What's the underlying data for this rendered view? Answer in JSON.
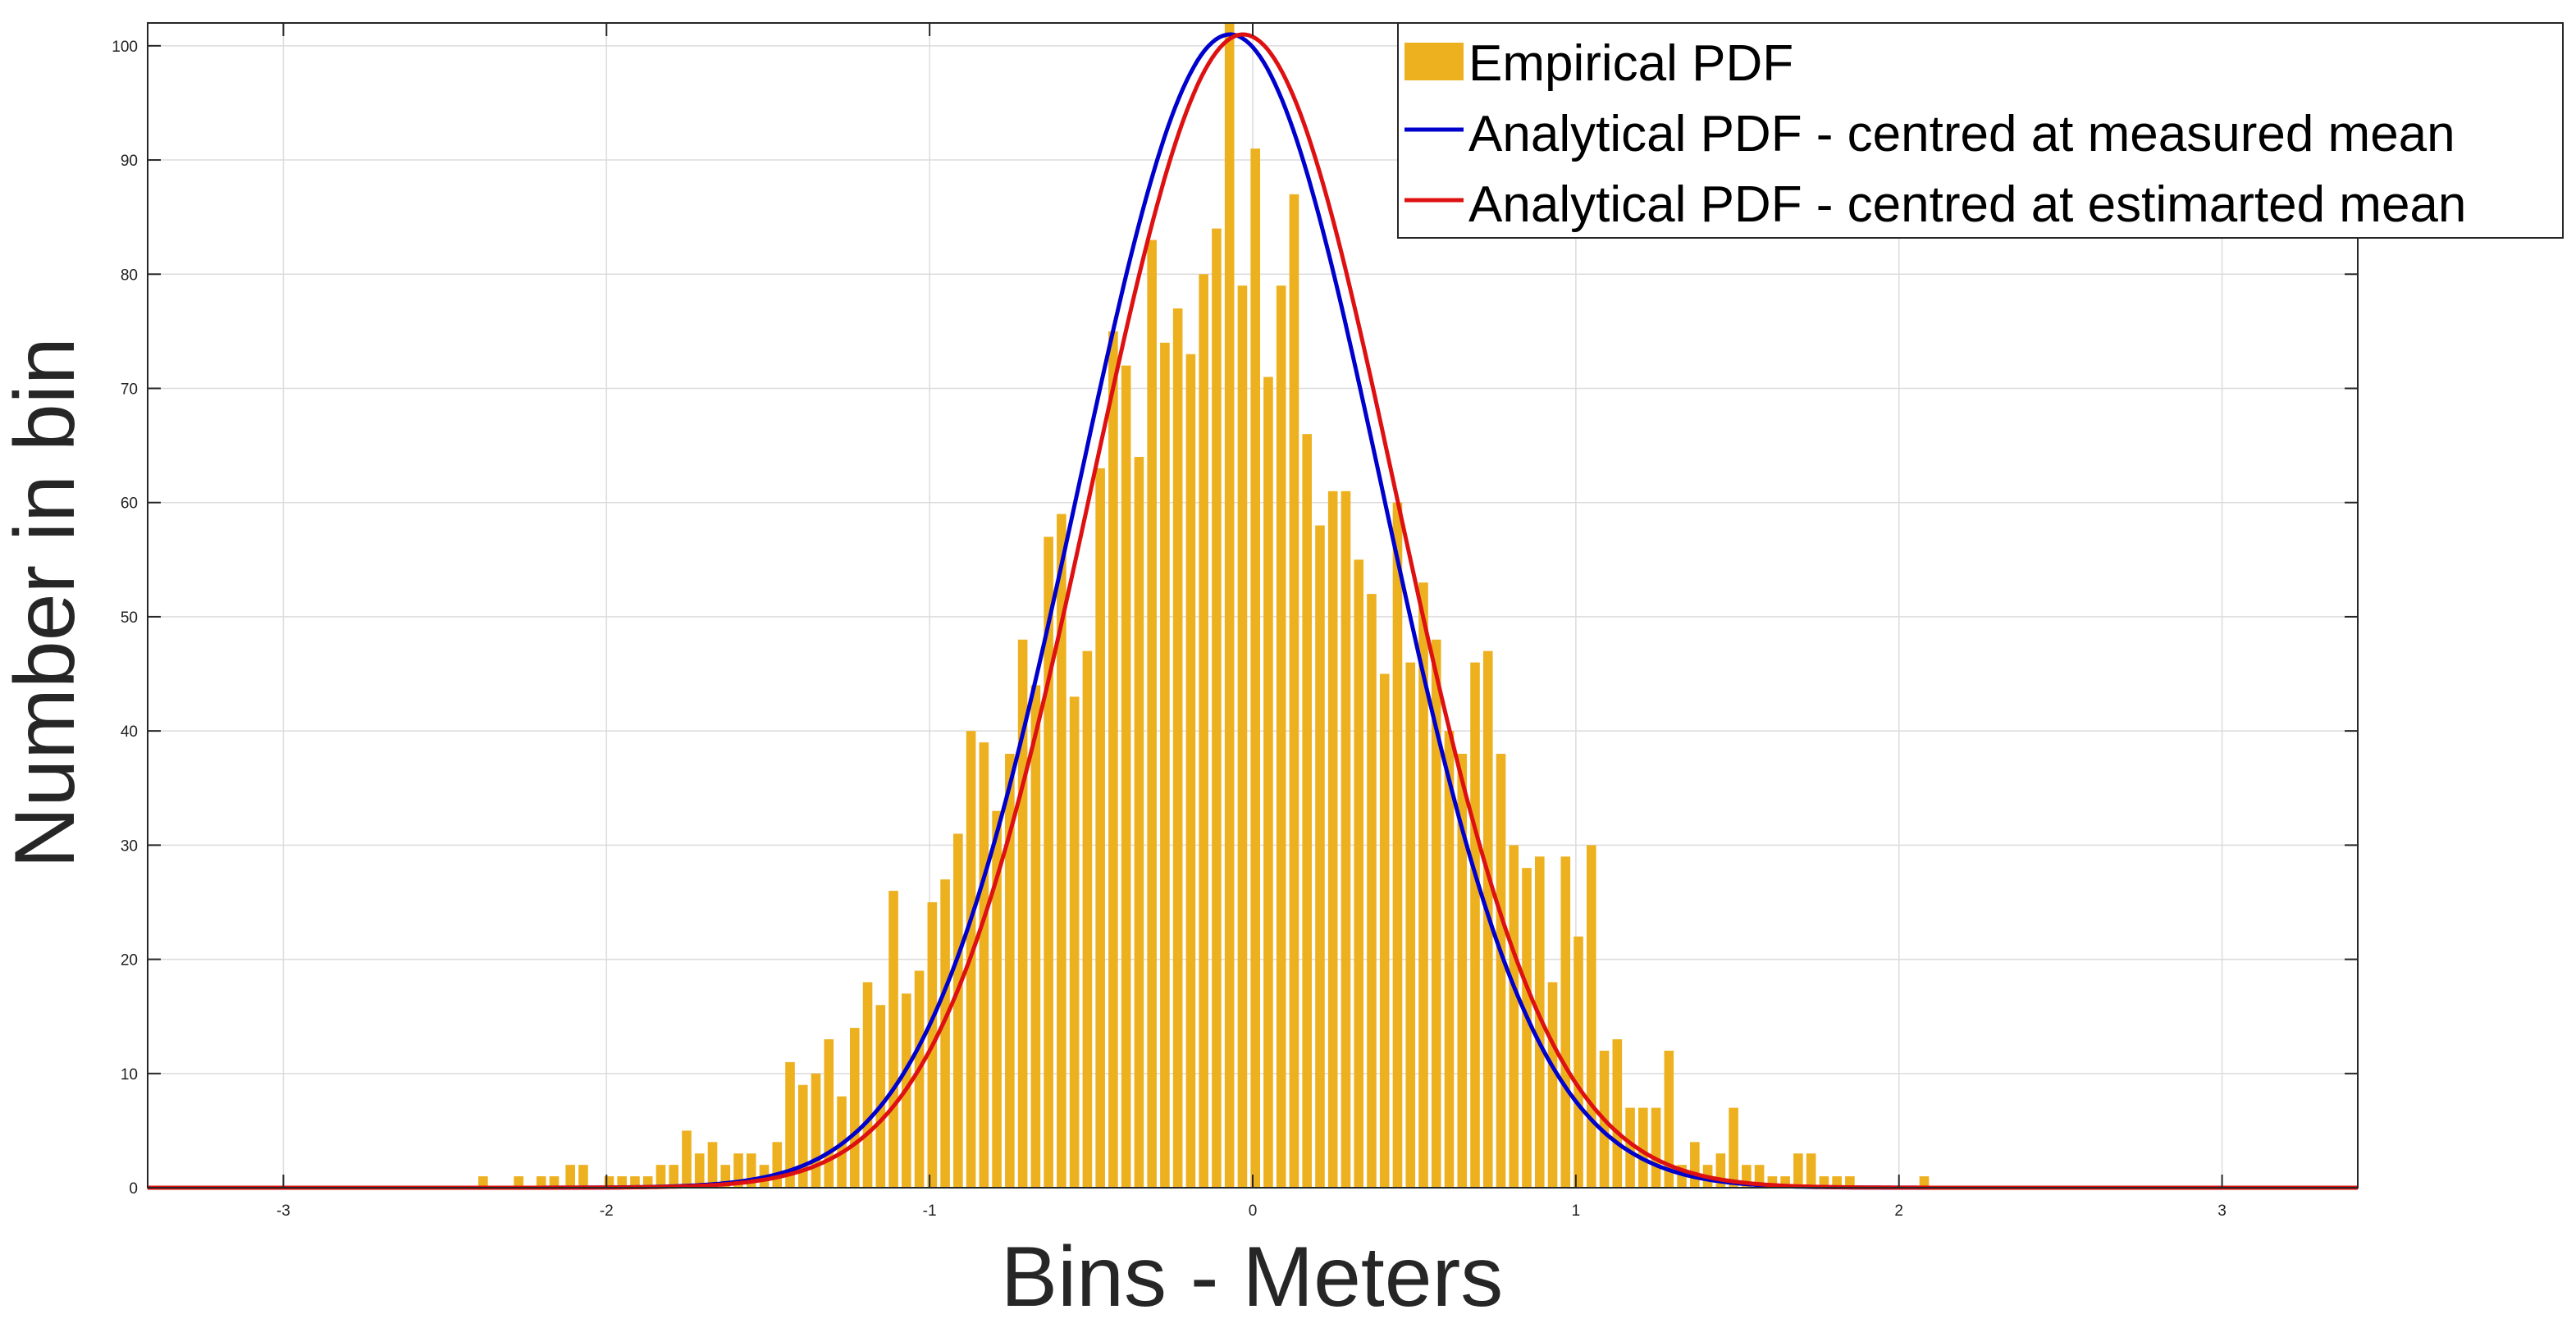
{
  "chart_data": {
    "type": "bar",
    "title": "",
    "xlabel": "Bins - Meters",
    "ylabel": "Number in bin",
    "xlim": [
      -3.42,
      3.42
    ],
    "ylim": [
      0,
      102
    ],
    "xticks": [
      -3,
      -2,
      -1,
      0,
      1,
      2,
      3
    ],
    "xtick_labels": [
      "-3",
      "-2",
      "-1",
      "0",
      "1",
      "2",
      "3"
    ],
    "yticks": [
      0,
      10,
      20,
      30,
      40,
      50,
      60,
      70,
      80,
      90,
      100
    ],
    "ytick_labels": [
      "0",
      "10",
      "20",
      "30",
      "40",
      "50",
      "60",
      "70",
      "80",
      "90",
      "100"
    ],
    "grid": true,
    "legend_position": "top-right",
    "colors": {
      "bars": "#EDB120",
      "measured": "#0000CC",
      "estimated": "#DD1111",
      "grid": "#DCDCDC",
      "axis": "#262626"
    },
    "histogram": {
      "name": "Empirical PDF",
      "bin_width": 0.0333,
      "bins": [
        {
          "x": -2.38,
          "v": 1
        },
        {
          "x": -2.27,
          "v": 1
        },
        {
          "x": -2.2,
          "v": 1
        },
        {
          "x": -2.16,
          "v": 1
        },
        {
          "x": -2.11,
          "v": 2
        },
        {
          "x": -2.07,
          "v": 2
        },
        {
          "x": -2.03,
          "v": 0
        },
        {
          "x": -1.99,
          "v": 1
        },
        {
          "x": -1.95,
          "v": 1
        },
        {
          "x": -1.91,
          "v": 1
        },
        {
          "x": -1.87,
          "v": 1
        },
        {
          "x": -1.83,
          "v": 2
        },
        {
          "x": -1.79,
          "v": 2
        },
        {
          "x": -1.75,
          "v": 5
        },
        {
          "x": -1.71,
          "v": 3
        },
        {
          "x": -1.67,
          "v": 4
        },
        {
          "x": -1.63,
          "v": 2
        },
        {
          "x": -1.59,
          "v": 3
        },
        {
          "x": -1.55,
          "v": 3
        },
        {
          "x": -1.51,
          "v": 2
        },
        {
          "x": -1.47,
          "v": 4
        },
        {
          "x": -1.43,
          "v": 11
        },
        {
          "x": -1.39,
          "v": 9
        },
        {
          "x": -1.35,
          "v": 10
        },
        {
          "x": -1.31,
          "v": 13
        },
        {
          "x": -1.27,
          "v": 8
        },
        {
          "x": -1.23,
          "v": 14
        },
        {
          "x": -1.19,
          "v": 18
        },
        {
          "x": -1.15,
          "v": 16
        },
        {
          "x": -1.11,
          "v": 26
        },
        {
          "x": -1.07,
          "v": 17
        },
        {
          "x": -1.03,
          "v": 19
        },
        {
          "x": -0.99,
          "v": 25
        },
        {
          "x": -0.95,
          "v": 27
        },
        {
          "x": -0.91,
          "v": 31
        },
        {
          "x": -0.87,
          "v": 40
        },
        {
          "x": -0.83,
          "v": 39
        },
        {
          "x": -0.79,
          "v": 33
        },
        {
          "x": -0.75,
          "v": 38
        },
        {
          "x": -0.71,
          "v": 48
        },
        {
          "x": -0.67,
          "v": 44
        },
        {
          "x": -0.63,
          "v": 57
        },
        {
          "x": -0.59,
          "v": 59
        },
        {
          "x": -0.55,
          "v": 43
        },
        {
          "x": -0.51,
          "v": 47
        },
        {
          "x": -0.47,
          "v": 63
        },
        {
          "x": -0.43,
          "v": 75
        },
        {
          "x": -0.39,
          "v": 72
        },
        {
          "x": -0.35,
          "v": 64
        },
        {
          "x": -0.31,
          "v": 83
        },
        {
          "x": -0.27,
          "v": 74
        },
        {
          "x": -0.23,
          "v": 77
        },
        {
          "x": -0.19,
          "v": 73
        },
        {
          "x": -0.15,
          "v": 80
        },
        {
          "x": -0.11,
          "v": 84
        },
        {
          "x": -0.07,
          "v": 102
        },
        {
          "x": -0.03,
          "v": 79
        },
        {
          "x": 0.01,
          "v": 91
        },
        {
          "x": 0.05,
          "v": 71
        },
        {
          "x": 0.09,
          "v": 79
        },
        {
          "x": 0.13,
          "v": 87
        },
        {
          "x": 0.17,
          "v": 66
        },
        {
          "x": 0.21,
          "v": 58
        },
        {
          "x": 0.25,
          "v": 61
        },
        {
          "x": 0.29,
          "v": 61
        },
        {
          "x": 0.33,
          "v": 55
        },
        {
          "x": 0.37,
          "v": 52
        },
        {
          "x": 0.41,
          "v": 45
        },
        {
          "x": 0.45,
          "v": 60
        },
        {
          "x": 0.49,
          "v": 46
        },
        {
          "x": 0.53,
          "v": 53
        },
        {
          "x": 0.57,
          "v": 48
        },
        {
          "x": 0.61,
          "v": 40
        },
        {
          "x": 0.65,
          "v": 38
        },
        {
          "x": 0.69,
          "v": 46
        },
        {
          "x": 0.73,
          "v": 47
        },
        {
          "x": 0.77,
          "v": 38
        },
        {
          "x": 0.81,
          "v": 30
        },
        {
          "x": 0.85,
          "v": 28
        },
        {
          "x": 0.89,
          "v": 29
        },
        {
          "x": 0.93,
          "v": 18
        },
        {
          "x": 0.97,
          "v": 29
        },
        {
          "x": 1.01,
          "v": 22
        },
        {
          "x": 1.05,
          "v": 30
        },
        {
          "x": 1.09,
          "v": 12
        },
        {
          "x": 1.13,
          "v": 13
        },
        {
          "x": 1.17,
          "v": 7
        },
        {
          "x": 1.21,
          "v": 7
        },
        {
          "x": 1.25,
          "v": 7
        },
        {
          "x": 1.29,
          "v": 12
        },
        {
          "x": 1.33,
          "v": 2
        },
        {
          "x": 1.37,
          "v": 4
        },
        {
          "x": 1.41,
          "v": 2
        },
        {
          "x": 1.45,
          "v": 3
        },
        {
          "x": 1.49,
          "v": 7
        },
        {
          "x": 1.53,
          "v": 2
        },
        {
          "x": 1.57,
          "v": 2
        },
        {
          "x": 1.61,
          "v": 1
        },
        {
          "x": 1.65,
          "v": 1
        },
        {
          "x": 1.69,
          "v": 3
        },
        {
          "x": 1.73,
          "v": 3
        },
        {
          "x": 1.77,
          "v": 1
        },
        {
          "x": 1.81,
          "v": 1
        },
        {
          "x": 1.85,
          "v": 1
        },
        {
          "x": 2.08,
          "v": 1
        }
      ]
    },
    "series": [
      {
        "name": "Analytical PDF - centred at measured mean",
        "kind": "gaussian",
        "mean": -0.07,
        "sigma": 0.47,
        "peak": 101
      },
      {
        "name": "Analytical PDF - centred at estimarted mean",
        "kind": "gaussian",
        "mean": -0.03,
        "sigma": 0.47,
        "peak": 101
      }
    ],
    "legend": [
      "Empirical PDF",
      "Analytical PDF - centred at measured mean",
      "Analytical PDF - centred at estimarted mean"
    ]
  }
}
